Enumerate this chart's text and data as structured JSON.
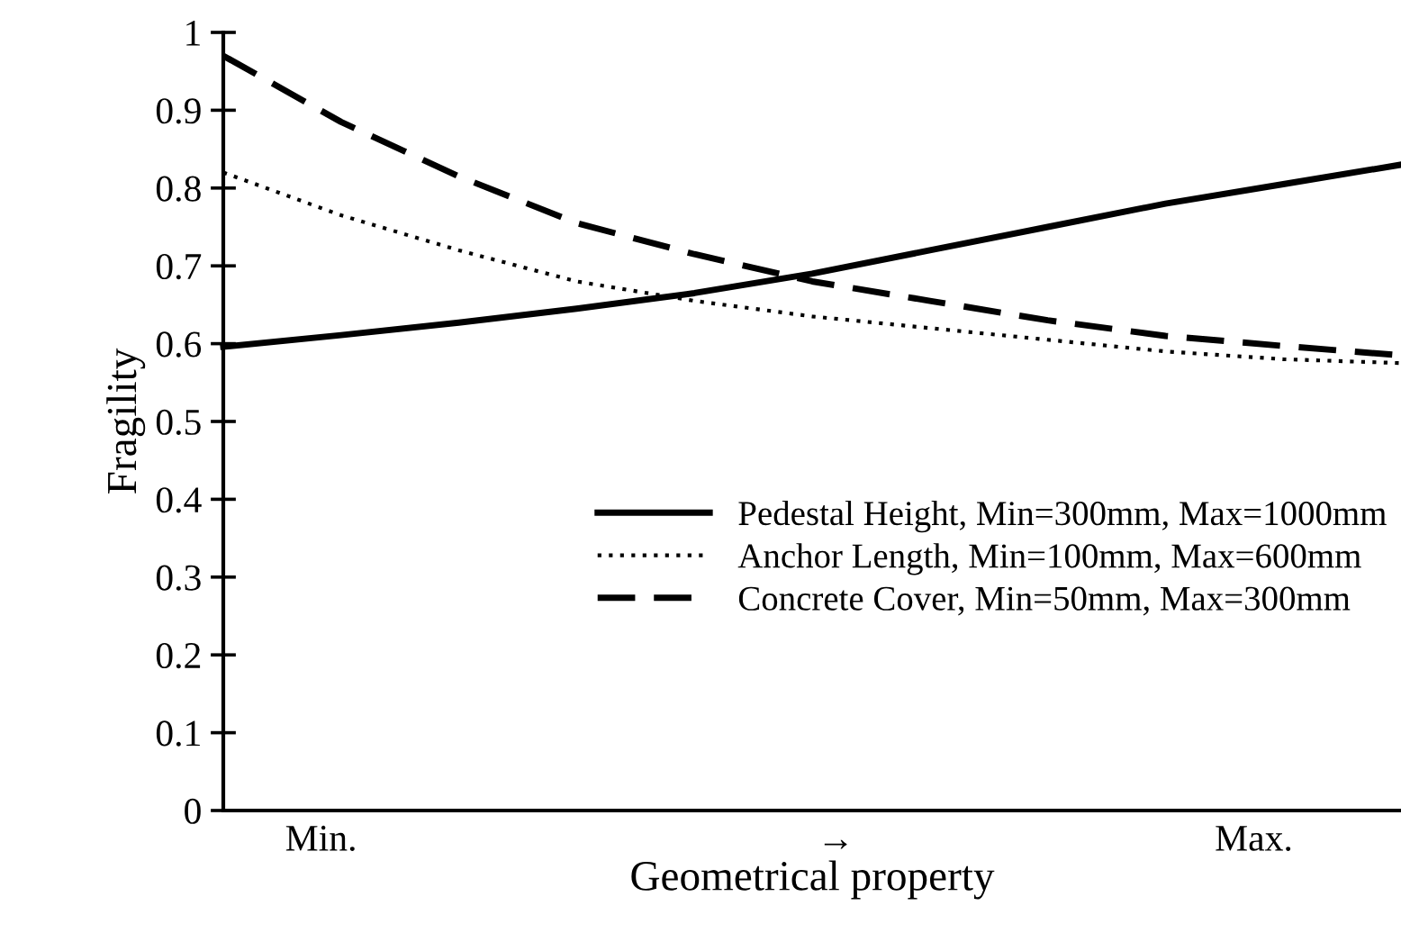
{
  "chart_data": {
    "type": "line",
    "xlabel": "Geometrical property",
    "ylabel": "Fragility",
    "categories": [
      null,
      null,
      null,
      null,
      null,
      null,
      null,
      null,
      null,
      null,
      null
    ],
    "annotations": [
      "Min.",
      "→",
      "Max."
    ],
    "ylim": [
      0,
      1
    ],
    "yticks": [
      0,
      0.1,
      0.2,
      0.3,
      0.4,
      0.5,
      0.6,
      0.7,
      0.8,
      0.9,
      1
    ],
    "series": [
      {
        "name": "Pedestal Height, Min=300mm, Max=1000mm",
        "color": "#000000",
        "line_style": "solid",
        "values": [
          0.596,
          0.611,
          0.627,
          0.645,
          0.665,
          0.69,
          0.72,
          0.75,
          0.78,
          0.805,
          0.83
        ]
      },
      {
        "name": "Anchor Length, Min=100mm, Max=600mm",
        "color": "#000000",
        "line_style": "dotted",
        "values": [
          0.82,
          0.765,
          0.72,
          0.68,
          0.655,
          0.635,
          0.62,
          0.605,
          0.59,
          0.58,
          0.575
        ]
      },
      {
        "name": "Concrete Cover, Min=50mm, Max=300mm",
        "color": "#000000",
        "line_style": "dashed",
        "values": [
          0.97,
          0.885,
          0.815,
          0.755,
          0.715,
          0.68,
          0.655,
          0.63,
          0.61,
          0.597,
          0.585
        ]
      }
    ],
    "grid": false,
    "legend": "lower right",
    "marker": "none"
  }
}
